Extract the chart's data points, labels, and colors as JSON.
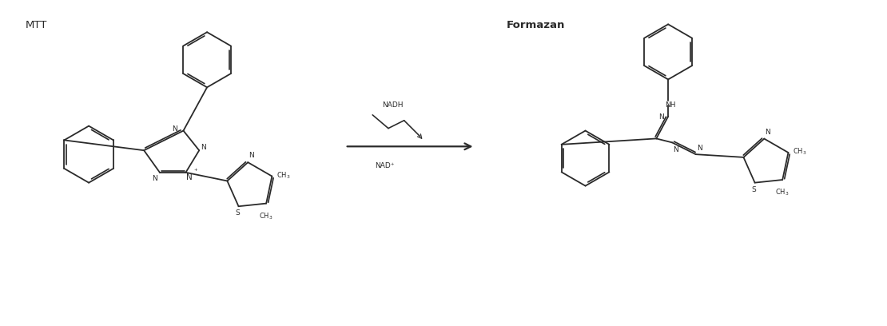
{
  "background_color": "#ffffff",
  "mtt_label": "MTT",
  "formazan_label": "Formazan",
  "nadh_label": "NADH",
  "nad_label": "NAD⁺",
  "fig_width": 11.1,
  "fig_height": 4.08,
  "dpi": 100,
  "line_color": "#2a2a2a",
  "lw": 1.3
}
